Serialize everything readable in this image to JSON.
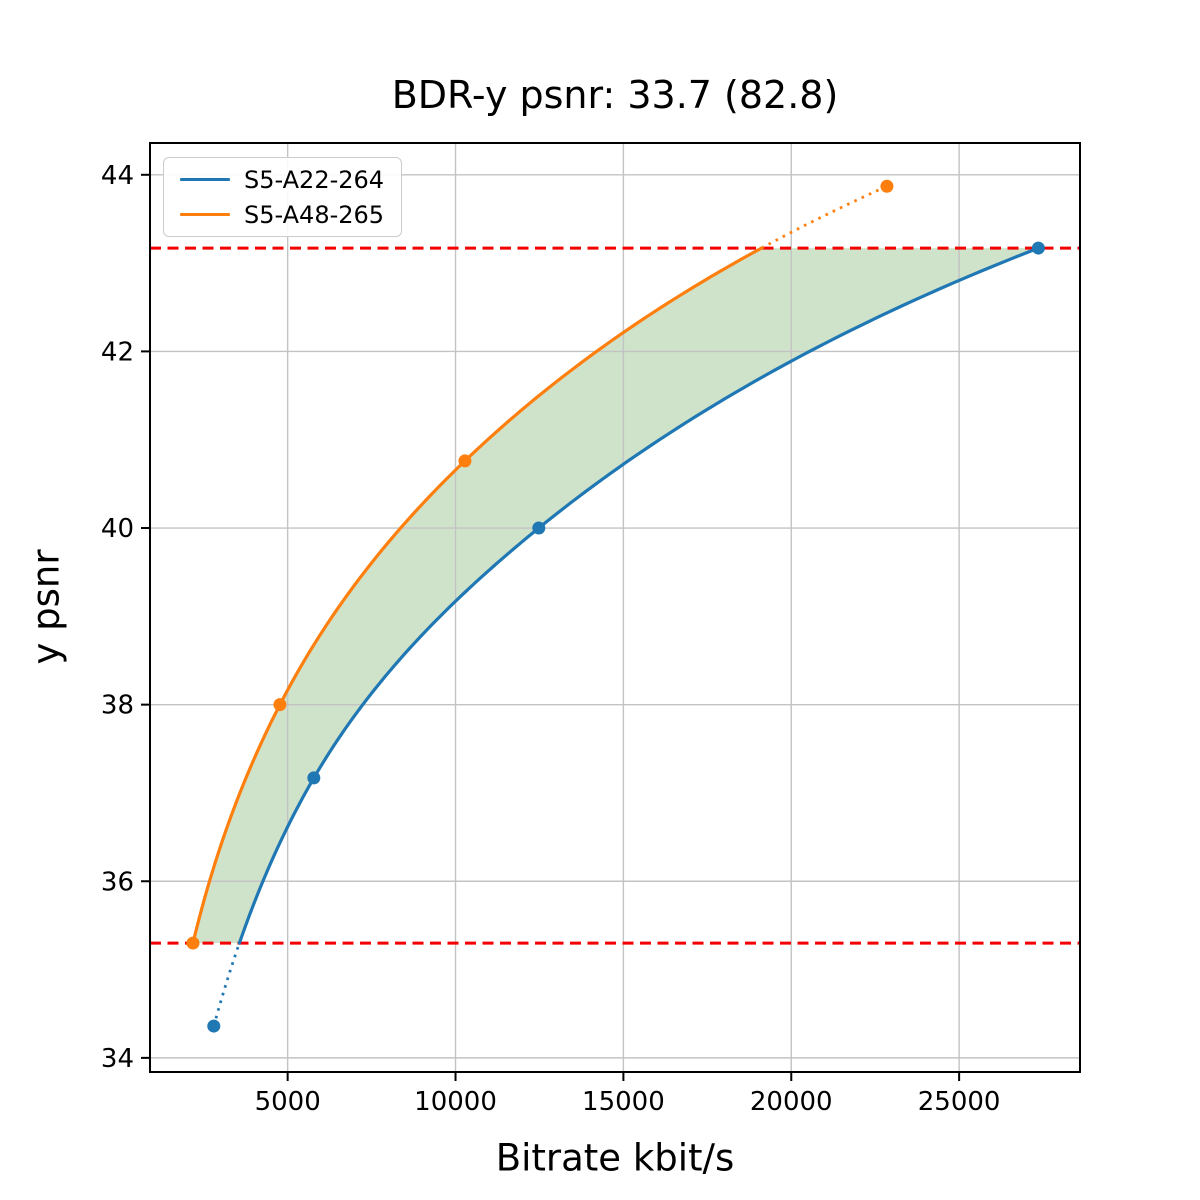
{
  "chart_data": {
    "type": "line",
    "title": "BDR-y psnr: 33.7 (82.8)",
    "xlabel": "Bitrate kbit/s",
    "ylabel": "y psnr",
    "xlim": [
      900,
      28600
    ],
    "ylim": [
      33.84,
      44.36
    ],
    "xticks": [
      5000,
      10000,
      15000,
      20000,
      25000
    ],
    "yticks": [
      34,
      36,
      38,
      40,
      42,
      44
    ],
    "grid": true,
    "grid_color": "#c3c3c3",
    "legend_position": "upper-left",
    "series": [
      {
        "name": "S5-A22-264",
        "color": "#1f77b4",
        "points": [
          [
            2800,
            34.36
          ],
          [
            5780,
            37.17
          ],
          [
            12480,
            40.0
          ],
          [
            27360,
            43.17
          ]
        ]
      },
      {
        "name": "S5-A48-265",
        "color": "#ff7f0e",
        "points": [
          [
            2180,
            35.3
          ],
          [
            4770,
            38.0
          ],
          [
            10280,
            40.76
          ],
          [
            22850,
            43.87
          ]
        ]
      }
    ],
    "overlap_bounds": {
      "lower_psnr": 35.3,
      "upper_psnr": 43.17,
      "line_color": "#f40000",
      "line_style": "dashed"
    },
    "shaded_region_color": "#cfe3ca",
    "axis_color": "#000000"
  }
}
